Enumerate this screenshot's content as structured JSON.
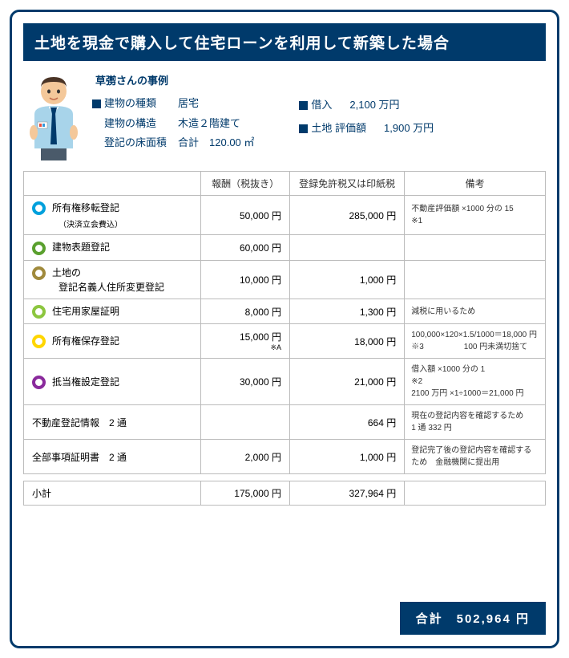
{
  "title": "土地を現金で購入して住宅ローンを利用して新築した場合",
  "case_name": "草彅さんの事例",
  "building": {
    "type_label": "建物の種類",
    "type_value": "居宅",
    "struct_label": "建物の構造",
    "struct_value": "木造２階建て",
    "area_label": "登記の床面積",
    "area_value": "合計　120.00 ㎡"
  },
  "loan": {
    "borrow_label": "借入",
    "borrow_value": "2,100 万円",
    "land_label": "土地 評価額",
    "land_value": "1,900 万円"
  },
  "headers": {
    "c1": "",
    "c2": "報酬（税抜き）",
    "c3": "登録免許税又は印紙税",
    "c4": "備考"
  },
  "rows": [
    {
      "ring": "r-cyan",
      "name": "所有権移転登記",
      "sub": "（決済立会費込）",
      "fee": "50,000 円",
      "tax": "285,000 円",
      "note": "不動産評価額 ×1000 分の 15\n※1"
    },
    {
      "ring": "r-green",
      "name": "建物表題登記",
      "fee": "60,000 円",
      "tax": "",
      "note": ""
    },
    {
      "ring": "r-olive",
      "name": "土地の",
      "sub2": "登記名義人住所変更登記",
      "fee": "10,000 円",
      "tax": "1,000 円",
      "note": ""
    },
    {
      "ring": "r-lime",
      "name": "住宅用家屋証明",
      "fee": "8,000 円",
      "tax": "1,300 円",
      "note": "減税に用いるため"
    },
    {
      "ring": "r-yellow",
      "name": "所有権保存登記",
      "fee": "15,000 円",
      "fee_note": "※A",
      "tax": "18,000 円",
      "note": "100,000×120×1.5/1000＝18,000 円\n※3　　　　　100 円未満切捨て"
    },
    {
      "ring": "r-purple",
      "name": "抵当権設定登記",
      "fee": "30,000 円",
      "tax": "21,000 円",
      "note": "借入額 ×1000 分の 1\n※2\n2100 万円 ×1÷1000＝21,000 円"
    },
    {
      "indent": true,
      "name": "不動産登記情報　2 通",
      "fee": "",
      "tax": "664 円",
      "note": "現在の登記内容を確認するため\n1 通 332 円"
    },
    {
      "indent": true,
      "name": "全部事項証明書　2 通",
      "fee": "2,000 円",
      "tax": "1,000 円",
      "note": "登記完了後の登記内容を確認するため　金融機関に提出用"
    }
  ],
  "subtotal": {
    "label": "小計",
    "fee": "175,000 円",
    "tax": "327,964 円"
  },
  "total": {
    "label": "合計",
    "value": "502,964 円"
  }
}
